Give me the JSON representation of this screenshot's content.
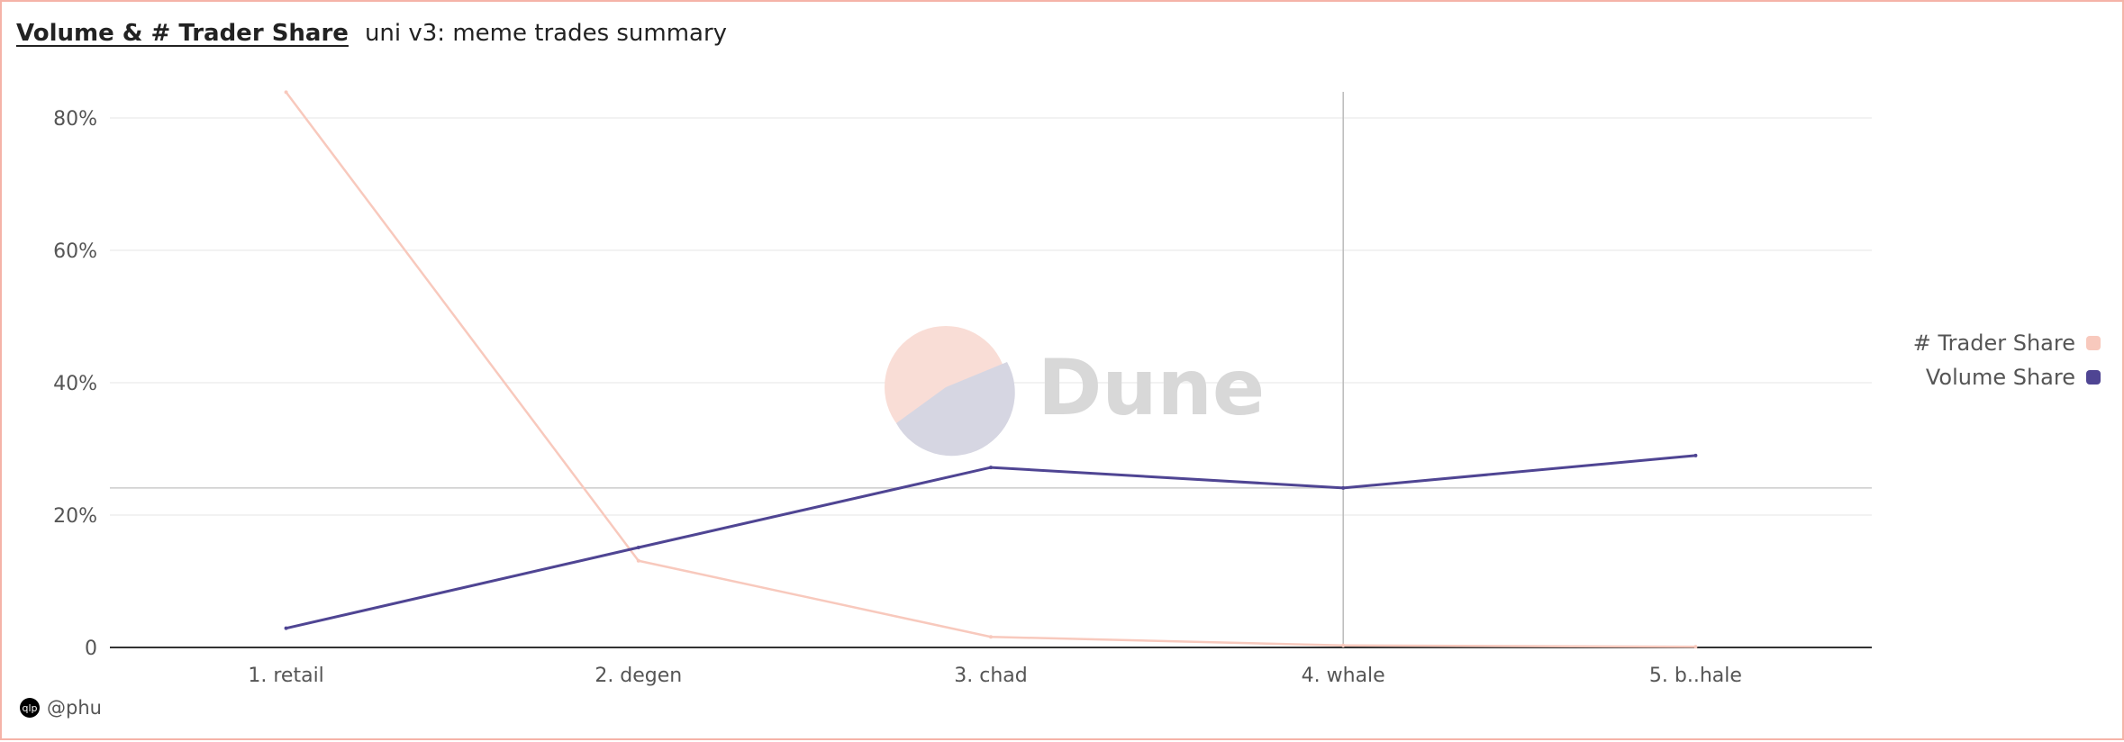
{
  "header": {
    "title": "Volume & # Trader Share",
    "subtitle": "uni v3: meme trades summary"
  },
  "author": {
    "handle": "@phu",
    "avatar_text": "qlp"
  },
  "watermark": {
    "text": "Dune"
  },
  "colors": {
    "trader": "#f8c9bd",
    "volume": "#4f4593",
    "border": "#f5b3a8"
  },
  "chart_data": {
    "type": "line",
    "categories": [
      "1. retail",
      "2. degen",
      "3. chad",
      "4. whale",
      "5. b..hale"
    ],
    "series": [
      {
        "name": "# Trader Share",
        "values": [
          83.9,
          13.1,
          1.6,
          0.3,
          0.1
        ]
      },
      {
        "name": "Volume Share",
        "values": [
          2.9,
          15.1,
          27.2,
          24.1,
          29.0
        ]
      }
    ],
    "yticks": [
      0,
      20,
      40,
      60,
      80
    ],
    "ytick_labels": [
      "0",
      "20%",
      "40%",
      "60%",
      "80%"
    ],
    "ylim": [
      0,
      84
    ],
    "grid": true,
    "legend": "right",
    "hover_category": "4. whale"
  }
}
